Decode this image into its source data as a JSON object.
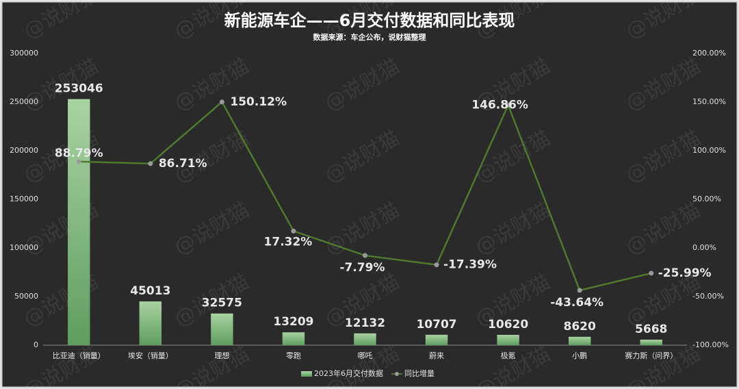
{
  "chart_data": {
    "type": "bar",
    "title": "新能源车企——6月交付数据和同比表现",
    "subtitle": "数据来源：车企公布，说财猫整理",
    "watermark": "@说财猫",
    "categories": [
      "比亚迪（销量）",
      "埃安（销量）",
      "理想",
      "零跑",
      "哪吒",
      "蔚来",
      "极氪",
      "小鹏",
      "赛力斯（问界）"
    ],
    "series": [
      {
        "name": "2023年6月交付数据",
        "color": "#6aa86a",
        "values": [
          253046,
          45013,
          32575,
          13209,
          12132,
          10707,
          10620,
          8620,
          5668
        ]
      },
      {
        "name": "同比增量",
        "type": "line",
        "axis": "y2",
        "color": "#4e7a2e",
        "values": [
          88.79,
          86.71,
          150.12,
          17.32,
          -7.79,
          -17.39,
          146.86,
          -43.64,
          -25.99
        ],
        "value_labels": [
          "88.79%",
          "86.71%",
          "150.12%",
          "17.32%",
          "-7.79%",
          "-17.39%",
          "146.86%",
          "-43.64%",
          "-25.99%"
        ]
      }
    ],
    "ylim": [
      0,
      300000
    ],
    "yticks": [
      0,
      50000,
      100000,
      150000,
      200000,
      250000,
      300000
    ],
    "y2lim": [
      -100,
      200
    ],
    "y2ticks": [
      {
        "value": -100,
        "label": "-100.00%"
      },
      {
        "value": -50,
        "label": "-50.00%"
      },
      {
        "value": 0,
        "label": "0.00%"
      },
      {
        "value": 50,
        "label": "50.00%"
      },
      {
        "value": 100,
        "label": "100.00%"
      },
      {
        "value": 150,
        "label": "150.00%"
      },
      {
        "value": 200,
        "label": "200.00%"
      }
    ],
    "legend": "bottom"
  }
}
